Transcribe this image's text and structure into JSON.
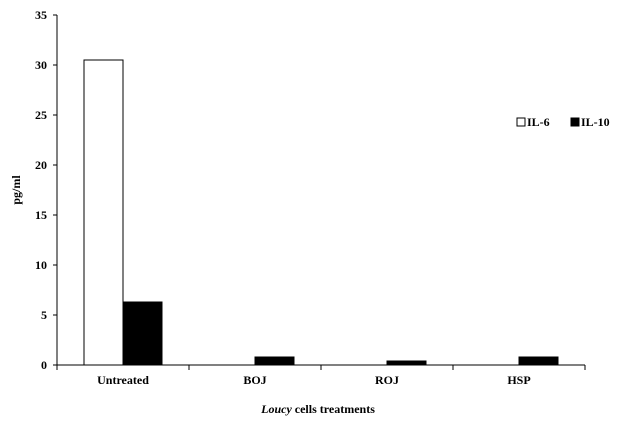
{
  "chart_data": {
    "type": "bar",
    "categories": [
      "Untreated",
      "BOJ",
      "ROJ",
      "HSP"
    ],
    "series": [
      {
        "name": "IL-6",
        "values": [
          30.5,
          0,
          0,
          0
        ],
        "fill": "#ffffff",
        "stroke": "#000000"
      },
      {
        "name": "IL-10",
        "values": [
          6.3,
          0.8,
          0.4,
          0.8
        ],
        "fill": "#000000",
        "stroke": "#000000"
      }
    ],
    "ylabel": "pg/ml",
    "xlabel_italic": "Loucy",
    "xlabel_rest": " cells treatments",
    "ylim": [
      0,
      35
    ],
    "yticks": [
      0,
      5,
      10,
      15,
      20,
      25,
      30,
      35
    ],
    "grid": false,
    "legend_position": "right"
  }
}
